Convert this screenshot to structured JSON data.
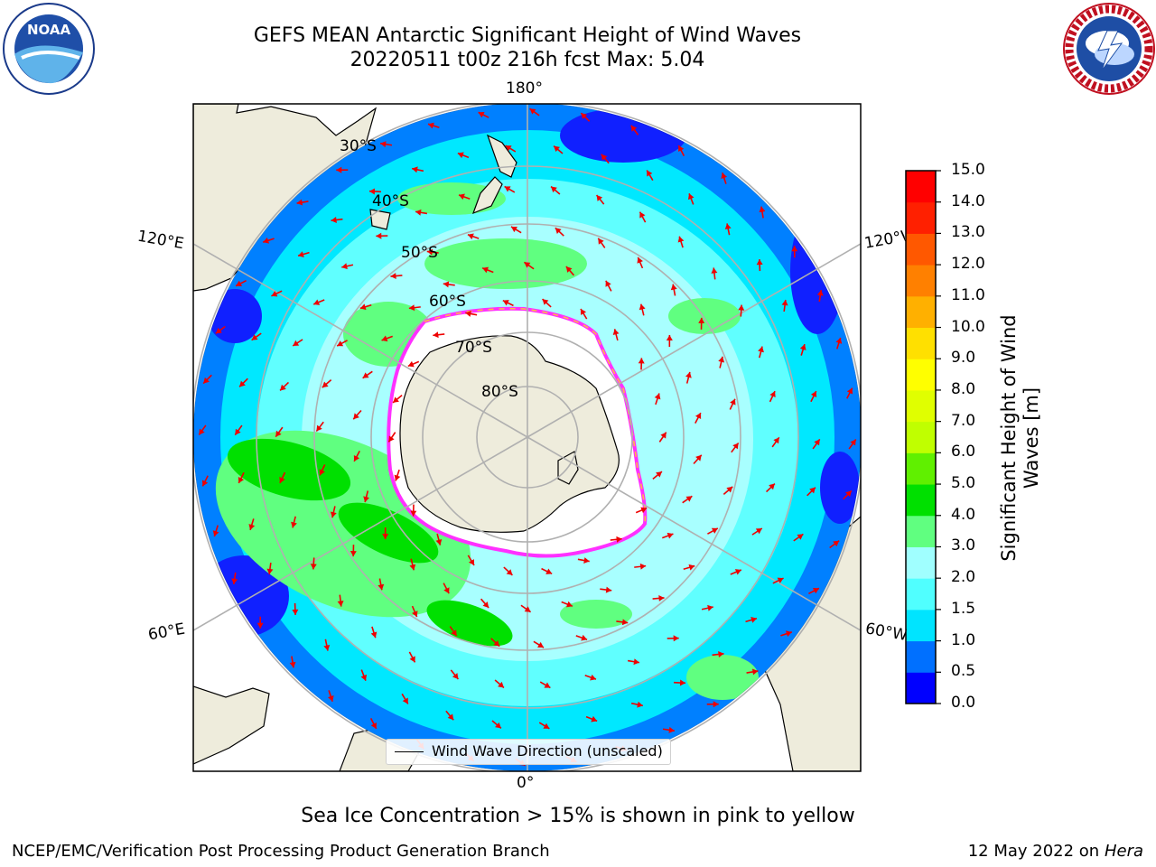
{
  "title": {
    "line1": "GEFS MEAN Antarctic Significant Height of Wind Waves",
    "line2": "20220511 t00z 216h fcst   Max: 5.04"
  },
  "logos": {
    "left": {
      "icon": "noaa-logo",
      "text": "NOAA",
      "ring_text": "NATIONAL OCEANIC AND ATMOSPHERIC ADMINISTRATION · U.S. DEPARTMENT OF COMMERCE"
    },
    "right": {
      "icon": "nws-logo",
      "ring_text": "NATIONAL WEATHER SERVICE"
    }
  },
  "map": {
    "projection": "south-polar-stereographic",
    "longitude_labels": {
      "top": "180°",
      "bottom": "0°",
      "upper_left": "120°E",
      "lower_left": "60°E",
      "upper_right": "120°W",
      "lower_right": "60°W"
    },
    "latitude_labels": [
      "30°S",
      "40°S",
      "50°S",
      "60°S",
      "70°S",
      "80°S"
    ],
    "legend": "Wind Wave Direction (unscaled)",
    "colors": {
      "land": "#eeecdc",
      "sea_ice": "#ffffff",
      "ice_edge": "#ff30ff",
      "arrow": "#ee0000",
      "grid": "#b0b0b0"
    }
  },
  "colorbar": {
    "label": "Significant Height of Wind Waves [m]",
    "ticks": [
      "0.0",
      "0.5",
      "1.0",
      "1.5",
      "2.0",
      "3.0",
      "4.0",
      "5.0",
      "6.0",
      "7.0",
      "8.0",
      "9.0",
      "10.0",
      "11.0",
      "12.0",
      "13.0",
      "14.0",
      "15.0"
    ],
    "colors": [
      "#0000ff",
      "#0070ff",
      "#00e4ff",
      "#50ffff",
      "#a0ffff",
      "#60ff80",
      "#00e000",
      "#60f000",
      "#c0ff00",
      "#e0ff00",
      "#ffff00",
      "#ffe000",
      "#ffb000",
      "#ff8000",
      "#ff5800",
      "#ff2000",
      "#ff0000"
    ]
  },
  "note": "Sea Ice Concentration > 15% is shown in pink to yellow",
  "footer": {
    "left": "NCEP/EMC/Verification Post Processing Product Generation Branch",
    "right_date": "12 May 2022 on",
    "right_machine": "Hera"
  }
}
